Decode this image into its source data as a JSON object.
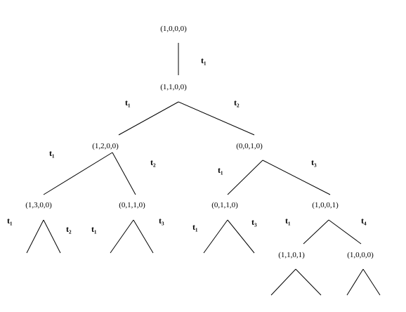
{
  "nodes": {
    "root": "(1,0,0,0)",
    "n1100": "(1,1,0,0)",
    "n1200": "(1,2,0,0)",
    "n0010": "(0,0,1,0)",
    "n1300": "(1,3,0,0)",
    "n0110a": "(0,1,1,0)",
    "n0110b": "(0,1,1,0)",
    "n1001": "(1,0,0,1)",
    "n1101": "(1,1,0,1)",
    "n1000b": "(1,0,0,0)"
  },
  "edge_labels": {
    "root_n1100": "t₁",
    "n1100_n1200": "t₁",
    "n1100_n0010": "t₂",
    "n1200_n1300": "t₁",
    "n1200_n0110a": "t₂",
    "n0010_n0110b": "t₁",
    "n0010_n1001": "t₃",
    "n1300_left": "t₁",
    "n1300_right": "t₂",
    "n0110a_left": "t₁",
    "n0110a_right": "t₃",
    "n0110b_left": "t₁",
    "n0110b_right": "t₃",
    "n1001_left": "t₁",
    "n1001_right": "t₄"
  }
}
